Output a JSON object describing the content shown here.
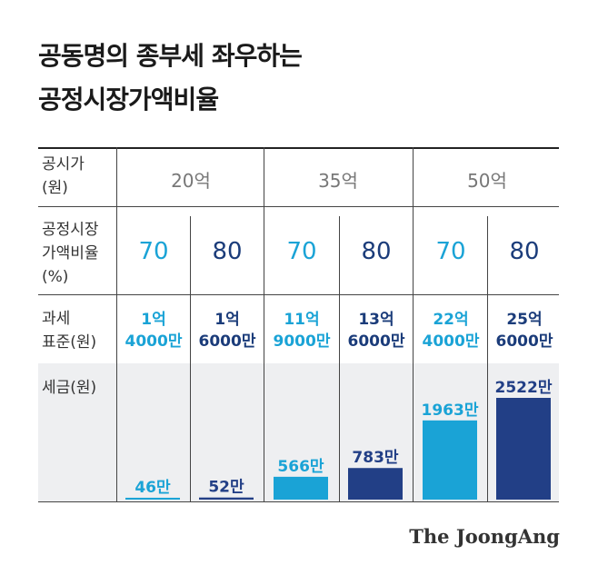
{
  "title_line1": "공동명의 종부세 좌우하는",
  "title_line2": "공정시장가액비율",
  "row_labels": {
    "price": "공시가\n(원)",
    "ratio": "공정시장\n가액비율\n(%)",
    "base": "과세\n표준(원)",
    "tax": "세금(원)"
  },
  "groups": [
    "20억",
    "35억",
    "50억"
  ],
  "ratios": [
    "70",
    "80",
    "70",
    "80",
    "70",
    "80"
  ],
  "bases": [
    "1억\n4000만",
    "1억\n6000만",
    "11억\n9000만",
    "13억\n6000만",
    "22억\n4000만",
    "25억\n6000만"
  ],
  "colors": {
    "teal": "#1aa3d6",
    "navy": "#223f86"
  },
  "logo": "The JoongAng",
  "chart_data": {
    "type": "bar",
    "title": "공동명의 종부세 좌우하는 공정시장가액비율",
    "categories": [
      "20억 70%",
      "20억 80%",
      "35억 70%",
      "35억 80%",
      "50억 70%",
      "50억 80%"
    ],
    "values": [
      46,
      52,
      566,
      783,
      1963,
      2522
    ],
    "labels": [
      "46만",
      "52만",
      "566만",
      "783만",
      "1963만",
      "2522만"
    ],
    "unit": "만원",
    "ylabel": "세금(원)",
    "ylim": [
      0,
      2600
    ]
  }
}
